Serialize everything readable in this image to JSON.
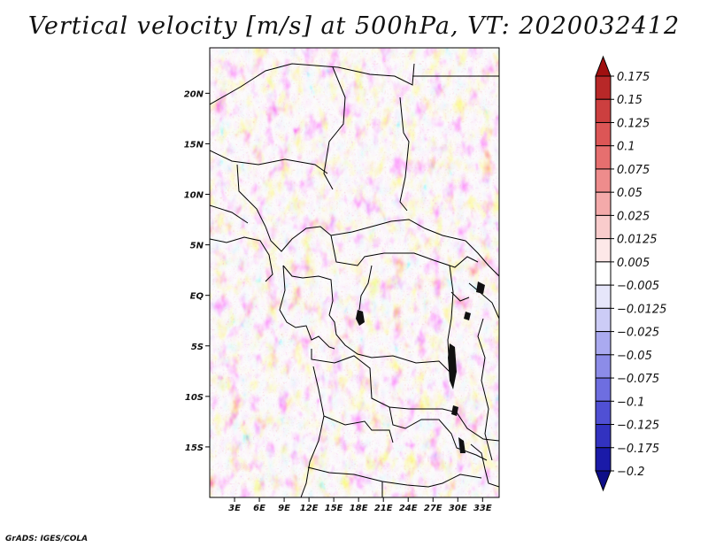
{
  "title": "Vertical velocity [m/s] at 500hPa, VT: 2020032412",
  "credit": "GrADS: IGES/COLA",
  "map": {
    "lon_range": [
      0,
      35
    ],
    "lat_range": [
      -20,
      24.5
    ],
    "lon_ticks": [
      "3E",
      "6E",
      "9E",
      "12E",
      "15E",
      "18E",
      "21E",
      "24E",
      "27E",
      "30E",
      "33E"
    ],
    "lat_ticks": [
      "20N",
      "15N",
      "10N",
      "5N",
      "EQ",
      "5S",
      "10S",
      "15S"
    ]
  },
  "colorbar": {
    "levels": [
      "0.175",
      "0.15",
      "0.125",
      "0.1",
      "0.075",
      "0.05",
      "0.025",
      "0.0125",
      "0.005",
      "−0.005",
      "−0.0125",
      "−0.025",
      "−0.05",
      "−0.075",
      "−0.1",
      "−0.125",
      "−0.175",
      "−0.2"
    ],
    "colors": [
      "#a01010",
      "#b82828",
      "#cc3f3f",
      "#dc5656",
      "#e66f6f",
      "#ee8c8c",
      "#f4aaaa",
      "#f9cccc",
      "#fde8e8",
      "#ffffff",
      "#e6e6fa",
      "#ccccf6",
      "#aaaaf0",
      "#8c8ce8",
      "#6e6ee0",
      "#5050d4",
      "#3232c0",
      "#1a1aa8",
      "#0e0e88"
    ]
  }
}
